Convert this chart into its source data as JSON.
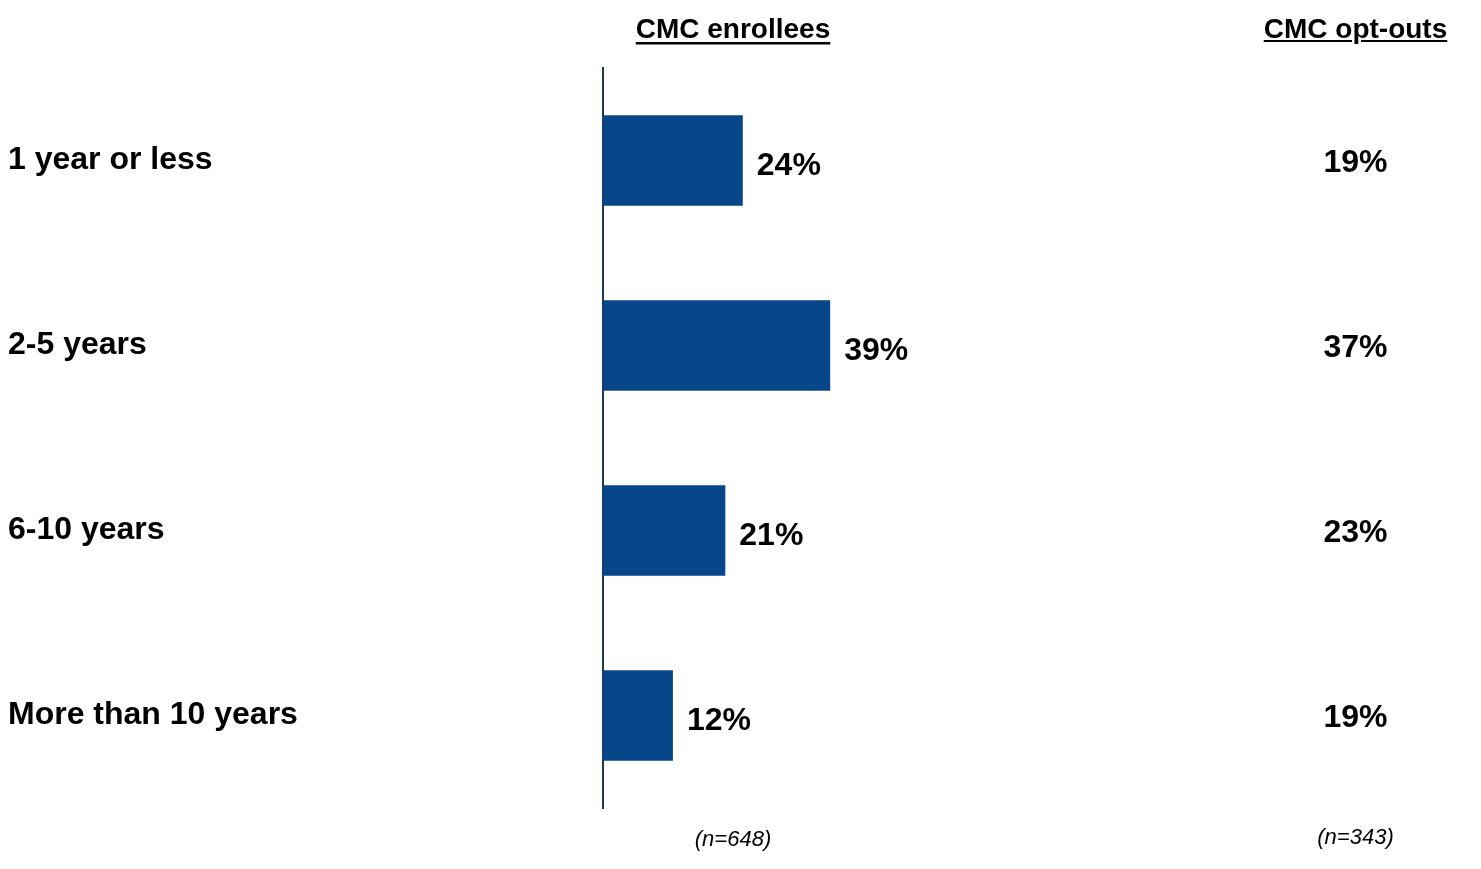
{
  "chart_data": [
    {
      "type": "bar",
      "orientation": "horizontal",
      "categories": [
        "1 year or less",
        "2-5 years",
        "6-10 years",
        "More than 10 years"
      ],
      "series": [
        {
          "name": "CMC enrollees",
          "color": "#074689",
          "values": [
            24,
            39,
            21,
            12
          ],
          "value_labels": [
            "24%",
            "39%",
            "21%",
            "12%"
          ]
        }
      ],
      "tick_labels": "y",
      "legend": false,
      "grid": false,
      "annotations": [
        "(n=648)"
      ]
    },
    {
      "type": "other",
      "title": "CMC opt-outs",
      "categories": [
        null,
        null,
        null,
        null
      ],
      "value_labels": [
        "19%",
        "37%",
        "23%",
        "19%"
      ],
      "annotations": [
        "(n=343)"
      ]
    }
  ]
}
